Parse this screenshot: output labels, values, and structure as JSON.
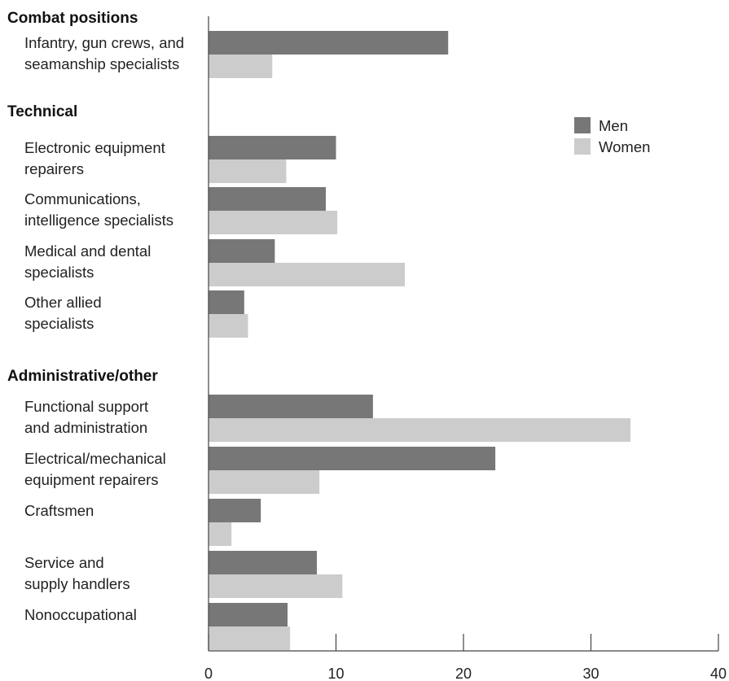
{
  "chart_data": {
    "type": "bar",
    "orientation": "horizontal",
    "groups": [
      {
        "title": "Combat positions",
        "categories": [
          0
        ]
      },
      {
        "title": "Technical",
        "categories": [
          1,
          2,
          3,
          4
        ]
      },
      {
        "title": "Administrative/other",
        "categories": [
          5,
          6,
          7,
          8,
          9
        ]
      }
    ],
    "categories": [
      [
        "Infantry, gun crews, and",
        "seamanship specialists"
      ],
      [
        "Electronic equipment",
        "repairers"
      ],
      [
        "Communications,",
        "intelligence specialists"
      ],
      [
        "Medical and dental",
        "specialists"
      ],
      [
        "Other allied",
        "specialists"
      ],
      [
        "Functional support",
        "and administration"
      ],
      [
        "Electrical/mechanical",
        "equipment repairers"
      ],
      [
        "Craftsmen"
      ],
      [
        "Service and",
        "supply handlers"
      ],
      [
        "Nonoccupational"
      ]
    ],
    "series": [
      {
        "name": "Men",
        "color": "#777777",
        "values": [
          18.8,
          10.0,
          9.2,
          5.2,
          2.8,
          12.9,
          22.5,
          4.1,
          8.5,
          6.2
        ]
      },
      {
        "name": "Women",
        "color": "#cccccc",
        "values": [
          5.0,
          6.1,
          10.1,
          15.4,
          3.1,
          33.1,
          8.7,
          1.8,
          10.5,
          6.4
        ]
      }
    ],
    "xticks": [
      0,
      10,
      20,
      30,
      40
    ],
    "xlim": [
      0,
      40
    ],
    "legend_position": "top-right",
    "grid": false
  }
}
